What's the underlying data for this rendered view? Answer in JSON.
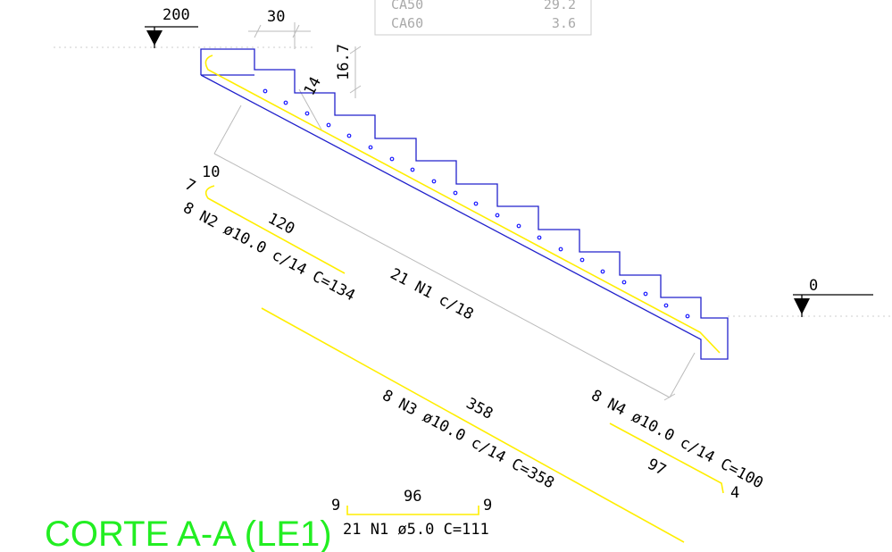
{
  "levels": {
    "top": "200",
    "bottom": "0"
  },
  "table": {
    "row1_grade": "CA50",
    "row1_value": "29.2",
    "row2_grade": "CA60",
    "row2_value": "3.6"
  },
  "dims": {
    "tread": "30",
    "riser": "16.7",
    "thickness": "14"
  },
  "n2": {
    "hook": "7",
    "top_hook": "10",
    "length": "120",
    "label": "8 N2 ø10.0 c/14 C=134"
  },
  "n1_spacing": {
    "label": "21 N1 c/18"
  },
  "n3": {
    "length": "358",
    "label": "8 N3 ø10.0 c/14 C=358"
  },
  "n4": {
    "label": "8 N4 ø10.0 c/14 C=100",
    "length": "97",
    "hook": "4"
  },
  "n1_detail": {
    "left_hook": "9",
    "length": "96",
    "right_hook": "9",
    "label": "21 N1 ø5.0 C=111"
  },
  "title": "CORTE A-A (LE1)",
  "colors": {
    "outline": "#2222cc",
    "rebar": "#ffee00",
    "dots": "#1a1aff",
    "title": "#22ee22",
    "dim": "#bbbbbb"
  }
}
